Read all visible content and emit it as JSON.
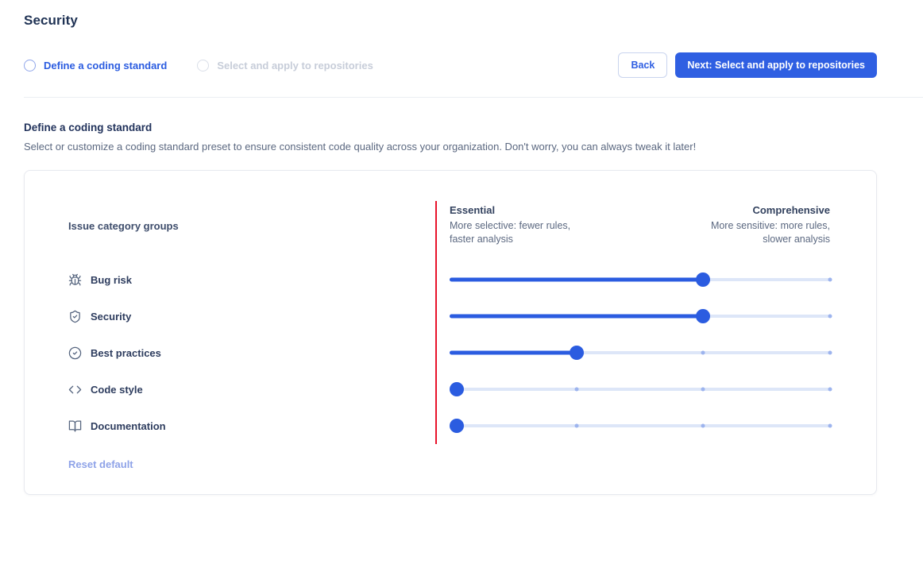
{
  "page": {
    "title": "Security"
  },
  "stepper": {
    "steps": [
      {
        "label": "Define a coding standard",
        "active": true
      },
      {
        "label": "Select and apply to repositories",
        "active": false
      }
    ]
  },
  "actions": {
    "back_label": "Back",
    "next_label": "Next: Select and apply to repositories"
  },
  "section": {
    "heading": "Define a coding standard",
    "description": "Select or customize a coding standard preset to ensure consistent code quality across your organization. Don't worry, you can always tweak it later!"
  },
  "card": {
    "rows_header": "Issue category groups",
    "scale": {
      "left_title": "Essential",
      "left_subtitle": "More selective: fewer rules,\nfaster analysis",
      "right_title": "Comprehensive",
      "right_subtitle": "More sensitive: more rules,\nslower analysis"
    },
    "categories": [
      {
        "label": "Bug risk",
        "icon": "bug-icon",
        "value": 2,
        "max": 3
      },
      {
        "label": "Security",
        "icon": "shield-check-icon",
        "value": 2,
        "max": 3
      },
      {
        "label": "Best practices",
        "icon": "check-circle-icon",
        "value": 1,
        "max": 3
      },
      {
        "label": "Code style",
        "icon": "code-icon",
        "value": 0,
        "max": 3
      },
      {
        "label": "Documentation",
        "icon": "book-open-icon",
        "value": 0,
        "max": 3
      }
    ],
    "reset_label": "Reset default"
  },
  "colors": {
    "accent_blue": "#2b5ce0",
    "button_blue": "#2f5fe2",
    "track_light": "#dde6f8",
    "tick_blue": "#9db4ee",
    "red_indicator_line": "#e8132b",
    "heading_navy": "#1f3254",
    "text_muted": "#5b6880",
    "text_disabled": "#c7cdd9",
    "reset_link": "#8fa3e8"
  }
}
